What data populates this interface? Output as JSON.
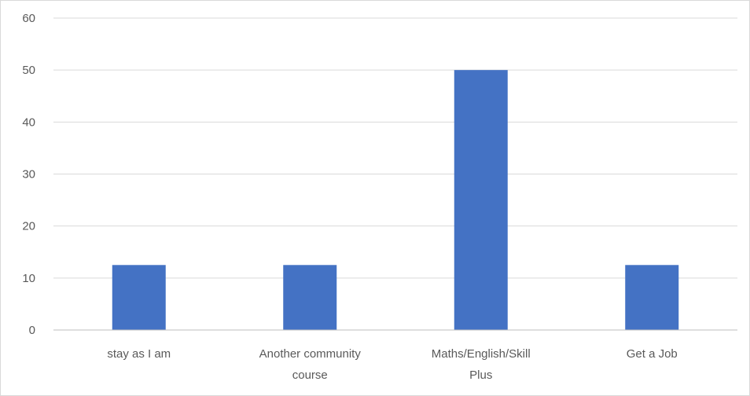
{
  "chart_data": {
    "type": "bar",
    "title": "",
    "xlabel": "",
    "ylabel": "",
    "categories": [
      [
        "stay as I am"
      ],
      [
        "Another community",
        "course"
      ],
      [
        "Maths/English/Skill",
        "Plus"
      ],
      [
        "Get a Job"
      ]
    ],
    "values": [
      12.5,
      12.5,
      50,
      12.5
    ],
    "ylim": [
      0,
      60
    ],
    "yticks": [
      0,
      10,
      20,
      30,
      40,
      50,
      60
    ],
    "grid": true,
    "legend": "none",
    "bar_color": "#4472c4",
    "grid_color": "#d9d9d9",
    "axis_color": "#bfbfbf",
    "text_color": "#595959"
  }
}
